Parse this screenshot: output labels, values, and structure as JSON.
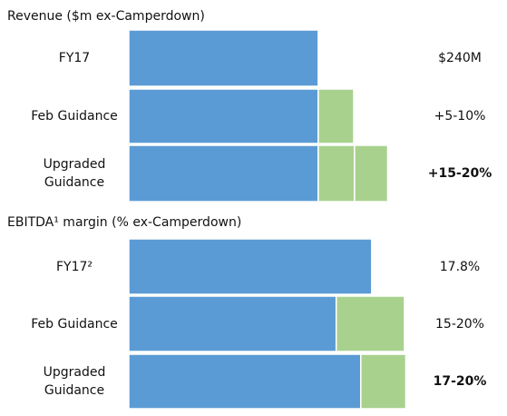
{
  "chart_data": [
    {
      "type": "bar",
      "stacked": true,
      "orientation": "horizontal",
      "title": "Revenue ($m ex-Camperdown)",
      "categories": [
        "FY17",
        "Feb Guidance",
        "Upgraded Guidance"
      ],
      "series": [
        {
          "color": "#5b9bd5",
          "values": [
            240,
            240,
            240
          ]
        },
        {
          "color": "#a9d18e",
          "values": [
            null,
            45,
            46
          ]
        },
        {
          "color": "#a9d18e",
          "values": [
            null,
            null,
            42
          ]
        }
      ],
      "xlim": [
        0,
        370
      ],
      "annotations": [
        "$240M",
        "+5-10%",
        "+15-20%"
      ],
      "annotation_bold": [
        false,
        false,
        true
      ]
    },
    {
      "type": "bar",
      "stacked": true,
      "orientation": "horizontal",
      "title": "EBITDA¹ margin (% ex-Camperdown)",
      "categories": [
        "FY17²",
        "Feb Guidance",
        "Upgraded Guidance"
      ],
      "series": [
        {
          "color": "#5b9bd5",
          "values": [
            17.8,
            15.2,
            17.0
          ]
        },
        {
          "color": "#a9d18e",
          "values": [
            null,
            5.0,
            3.3
          ]
        }
      ],
      "xlim": [
        0,
        21.4
      ],
      "annotations": [
        "17.8%",
        "15-20%",
        "17-20%"
      ],
      "annotation_bold": [
        false,
        false,
        true
      ]
    }
  ]
}
